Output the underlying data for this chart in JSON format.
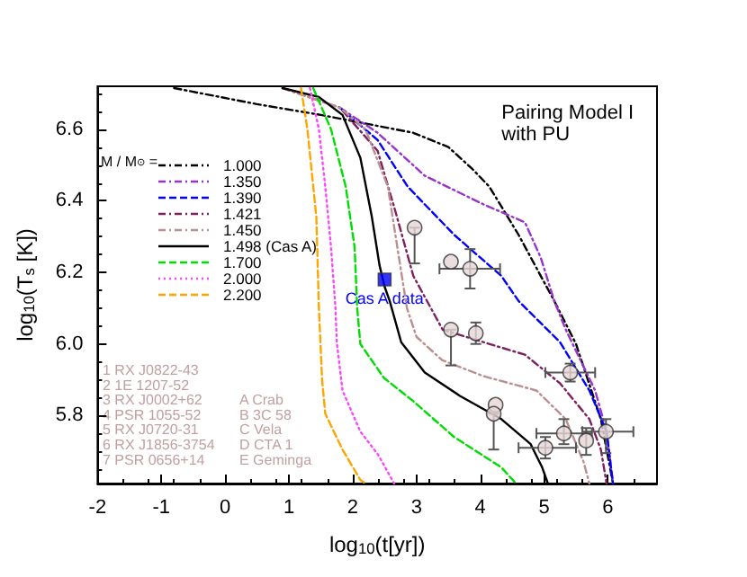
{
  "chart_data": {
    "type": "line",
    "title": "Pairing Model I\nwith PU",
    "xlabel": "log$_{10}$(t[yr])",
    "ylabel": "log$_{10}$(T$_{s}$ [K])",
    "legend_title": "M / M$_{⊙}$ =",
    "legend": "top left",
    "grid": false,
    "xlim": [
      -2,
      6.77
    ],
    "ylim": [
      5.61,
      6.72
    ],
    "xticks": [
      -2,
      -1,
      0,
      1,
      2,
      3,
      4,
      5,
      6
    ],
    "yticks": [
      5.8,
      {
        "value": 6,
        "label": "6.0"
      },
      6.2,
      6.4,
      6.6
    ],
    "annotations": [
      "1 RX J0822-43",
      "2 1E 1207-52",
      "3 RX J0002+62",
      "4 PSR 1055-52",
      "5 RX J0720-31",
      "6 RX J1856-3754",
      "7 PSR 0656+14",
      "A Crab",
      "B 3C 58",
      "C Vela",
      "D CTA 1",
      "E Geminga",
      {
        "text": "Cas A data",
        "x": 2.5,
        "y": 6.18
      }
    ],
    "series": [
      {
        "name": "1.000",
        "color": "#000000",
        "line_style": "dashdot",
        "x": [
          -0.8,
          0.5,
          1.5,
          2.95,
          3.5,
          3.87,
          4.14,
          4.6,
          5.16,
          5.5,
          5.89,
          6.08
        ],
        "values": [
          6.715,
          6.67,
          6.64,
          6.59,
          6.55,
          6.49,
          6.44,
          6.305,
          6.12,
          6.0,
          5.79,
          5.61
        ]
      },
      {
        "name": "1.350",
        "color": "#9933cc",
        "line_style": "dashdot",
        "x": [
          1.8,
          2.39,
          3.13,
          4.05,
          4.7,
          4.95,
          5.16,
          5.34,
          5.8,
          5.98,
          6.08
        ],
        "values": [
          6.66,
          6.59,
          6.47,
          6.39,
          6.34,
          6.24,
          6.12,
          6.04,
          5.87,
          5.755,
          5.61
        ]
      },
      {
        "name": "1.390",
        "color": "#0000ff",
        "line_style": "dashed",
        "x": [
          1.8,
          2.39,
          2.86,
          3.59,
          4.33,
          4.6,
          5.25,
          5.71,
          5.98,
          6.08
        ],
        "values": [
          6.66,
          6.57,
          6.44,
          6.305,
          6.19,
          6.12,
          6.005,
          5.87,
          5.755,
          5.61
        ]
      },
      {
        "name": "1.421",
        "color": "#7f1f5f",
        "line_style": "dashdot",
        "x": [
          0.9,
          1.8,
          2.39,
          2.67,
          2.95,
          3.41,
          4.05,
          4.7,
          5.25,
          5.71,
          5.89,
          5.98
        ],
        "values": [
          6.715,
          6.66,
          6.54,
          6.37,
          6.19,
          6.04,
          6.005,
          5.97,
          5.89,
          5.79,
          5.705,
          5.61
        ]
      },
      {
        "name": "1.450",
        "color": "#bc8f8f",
        "line_style": "dashdot",
        "x": [
          0.9,
          1.8,
          2.2,
          2.55,
          2.7,
          2.85,
          3.0,
          3.4,
          4.05,
          4.88,
          5.34,
          5.62,
          5.71
        ],
        "values": [
          6.715,
          6.66,
          6.6,
          6.44,
          6.27,
          6.1,
          6.02,
          5.955,
          5.91,
          5.87,
          5.79,
          5.67,
          5.61
        ]
      },
      {
        "name": "1.498 (Cas A)",
        "color": "#000000",
        "line_style": "solid",
        "x": [
          0.9,
          1.47,
          1.84,
          2.12,
          2.3,
          2.42,
          2.5,
          2.58,
          2.76,
          3.13,
          3.68,
          4.33,
          4.79,
          4.97,
          5.06
        ],
        "values": [
          6.715,
          6.69,
          6.64,
          6.52,
          6.355,
          6.22,
          6.16,
          6.12,
          6.005,
          5.92,
          5.855,
          5.79,
          5.72,
          5.655,
          5.61
        ]
      },
      {
        "name": "1.700",
        "color": "#00dd00",
        "line_style": "dashed",
        "x": [
          1.38,
          1.66,
          1.89,
          2.03,
          2.07,
          2.12,
          2.49,
          2.95,
          3.59,
          4.33,
          4.56
        ],
        "values": [
          6.715,
          6.6,
          6.44,
          6.27,
          6.1,
          6.0,
          5.905,
          5.84,
          5.74,
          5.655,
          5.61
        ]
      },
      {
        "name": "2.000",
        "color": "#ff44ff",
        "line_style": "dotted",
        "x": [
          1.33,
          1.47,
          1.57,
          1.66,
          1.73,
          1.75,
          1.84,
          2.12,
          2.4,
          2.65
        ],
        "values": [
          6.715,
          6.6,
          6.44,
          6.27,
          6.1,
          6.005,
          5.87,
          5.755,
          5.69,
          5.61
        ]
      },
      {
        "name": "2.200",
        "color": "#ffa500",
        "line_style": "dashed",
        "x": [
          1.19,
          1.29,
          1.43,
          1.47,
          1.52,
          1.57,
          1.84,
          2.12,
          2.2
        ],
        "values": [
          6.715,
          6.6,
          6.355,
          6.1,
          5.9,
          5.805,
          5.705,
          5.62,
          5.61
        ]
      },
      {
        "type": "scatter",
        "color": "#e6d6d6",
        "marker": "circle",
        "x": [
          2.97,
          3.54,
          3.84,
          3.54,
          3.93,
          5.41,
          4.24,
          4.21,
          5.02,
          5.31,
          5.66,
          5.97
        ],
        "values": [
          6.325,
          6.23,
          6.21,
          6.04,
          6.03,
          5.92,
          5.83,
          5.805,
          5.71,
          5.75,
          5.73,
          5.755
        ],
        "errors": [
          [
            6.225,
            6.325
          ],
          null,
          [
            6.155,
            6.265
          ],
          [
            5.94,
            6.04
          ],
          [
            6.0,
            6.06
          ],
          [
            5.895,
            5.945
          ],
          null,
          [
            5.705,
            5.805
          ],
          [
            5.68,
            5.74
          ],
          [
            5.72,
            5.79
          ],
          [
            5.69,
            5.765
          ],
          [
            5.695,
            5.79
          ]
        ],
        "xerrors": [
          null,
          null,
          [
            3.36,
            4.31
          ],
          null,
          null,
          [
            5.02,
            5.8
          ],
          null,
          null,
          [
            4.6,
            5.5
          ],
          [
            4.88,
            5.75
          ],
          null,
          [
            5.6,
            6.4
          ]
        ]
      },
      {
        "type": "scatter",
        "color": "#0000ff",
        "marker": "square",
        "x": [
          2.5
        ],
        "values": [
          6.18
        ]
      }
    ]
  }
}
